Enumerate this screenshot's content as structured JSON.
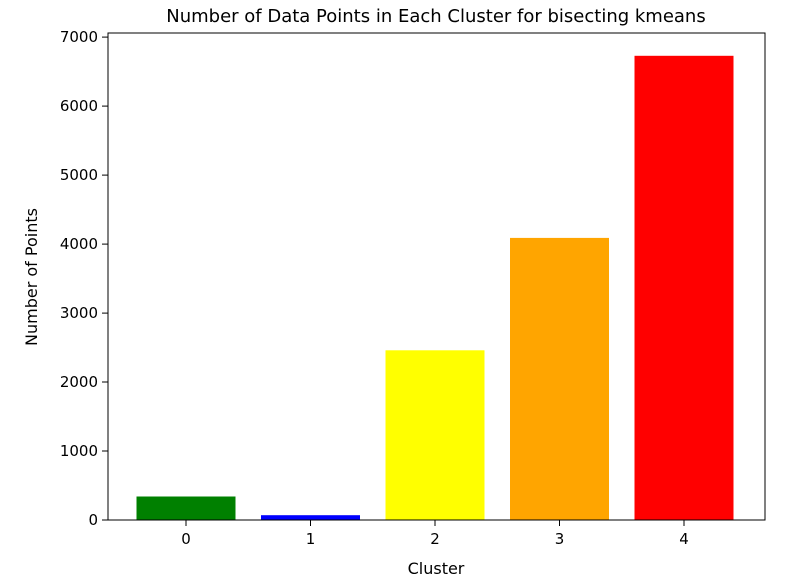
{
  "chart_data": {
    "type": "bar",
    "title": "Number of Data Points in Each Cluster for bisecting kmeans",
    "xlabel": "Cluster",
    "ylabel": "Number of Points",
    "categories": [
      "0",
      "1",
      "2",
      "3",
      "4"
    ],
    "values": [
      340,
      70,
      2460,
      4090,
      6730
    ],
    "colors": [
      "#008000",
      "#0000ff",
      "#ffff00",
      "#ffa500",
      "#ff0000"
    ],
    "ylim": [
      0,
      7060
    ],
    "yticks": [
      0,
      1000,
      2000,
      3000,
      4000,
      5000,
      6000,
      7000
    ],
    "grid": false,
    "legend": "none"
  }
}
